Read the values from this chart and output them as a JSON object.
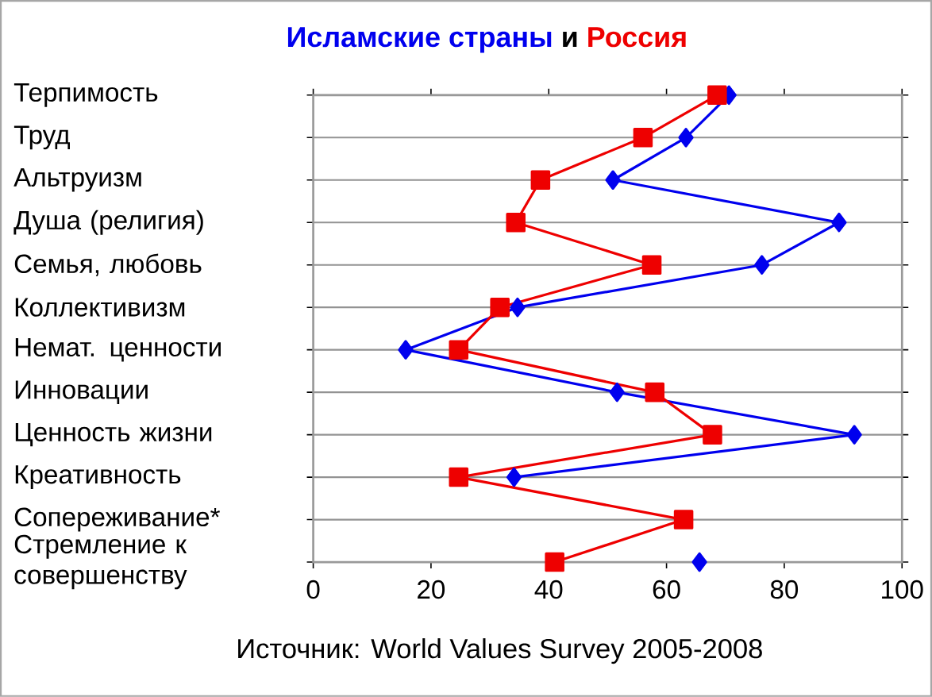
{
  "chart_data": {
    "type": "line",
    "title": "и",
    "categories": [
      "Терпимость",
      "Труд",
      "Альтруизм",
      "Душа (религия)",
      "Семья, любовь",
      "Коллективизм",
      "Немат. ценности",
      "Инновации",
      "Ценность жизни",
      "Креативность",
      "Сопереживание*",
      "Стремление к совершенству"
    ],
    "series": [
      {
        "name": "Исламские страны",
        "color": "#0000ee",
        "marker": "diamond",
        "values": [
          70.6,
          63.3,
          50.9,
          89.3,
          76.2,
          34.7,
          15.7,
          51.6,
          91.9,
          34.1,
          null,
          65.6
        ]
      },
      {
        "name": "Россия",
        "color": "#ee0000",
        "marker": "square",
        "values": [
          68.6,
          56,
          38.6,
          34.4,
          57.5,
          31.7,
          24.7,
          58,
          67.8,
          24.7,
          62.9,
          41
        ]
      }
    ],
    "orientation": "horizontal",
    "xlim": [
      0,
      100
    ],
    "xticks": [
      0,
      20,
      40,
      60,
      80,
      100
    ],
    "grid": "y",
    "legend": false,
    "line_style": "solid",
    "annotations": [
      "Источник: World Values Survey 2005-2008"
    ]
  }
}
